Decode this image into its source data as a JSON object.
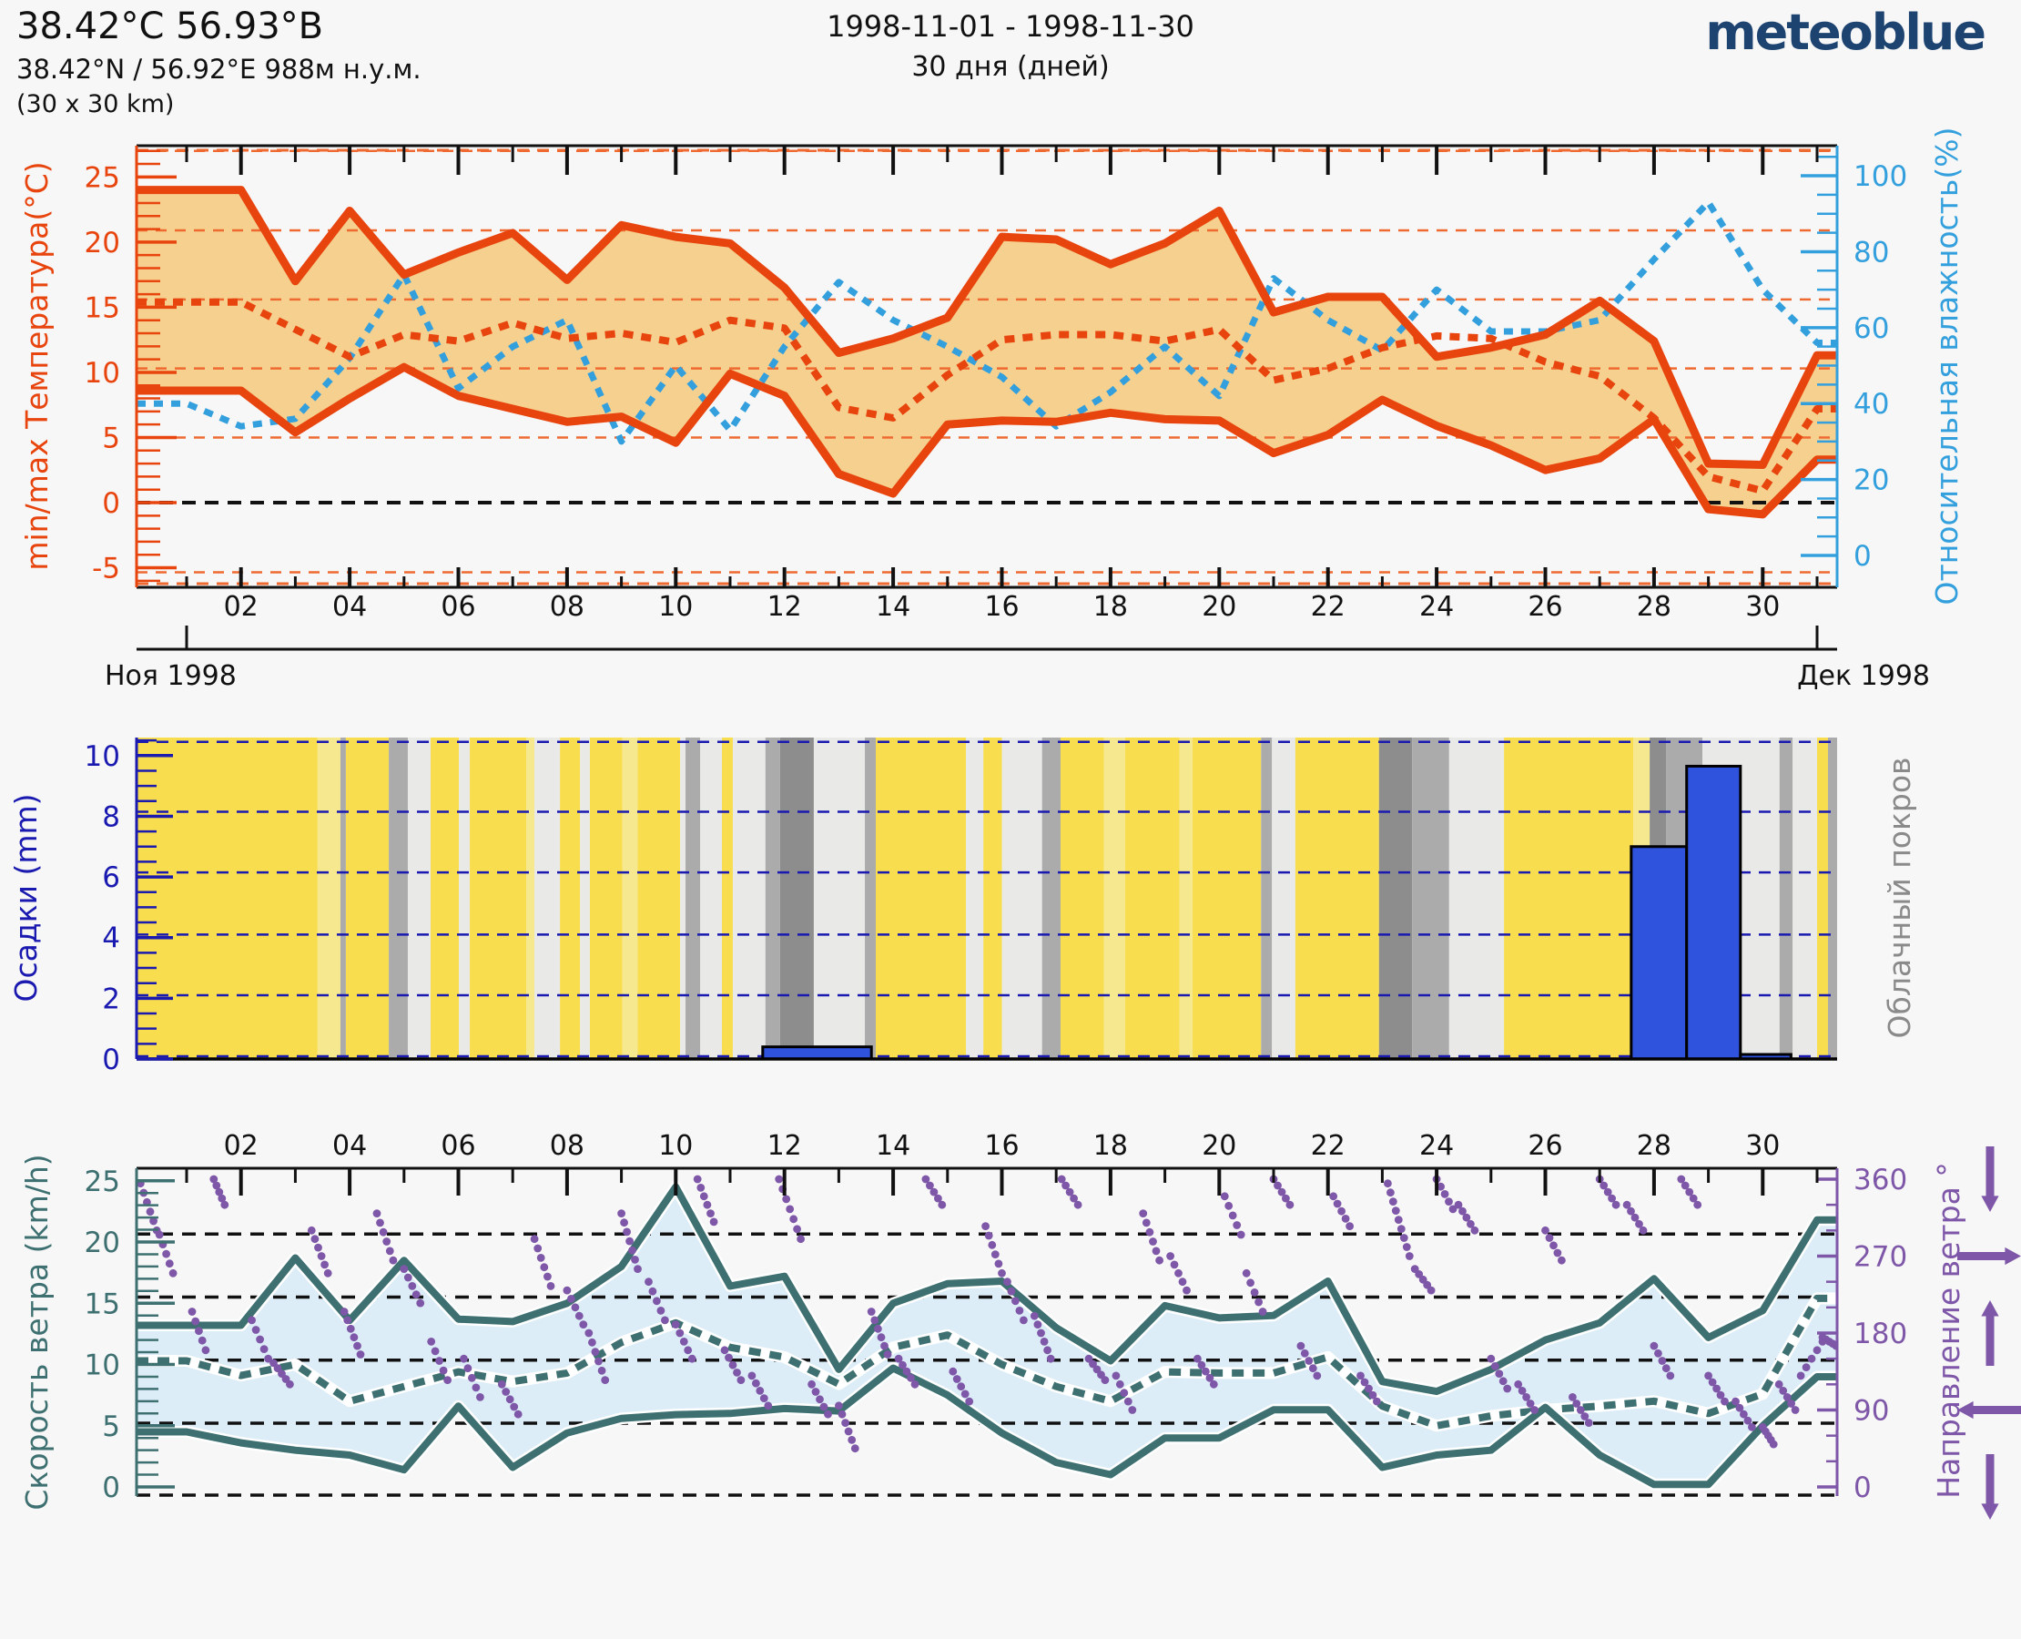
{
  "header": {
    "title": "38.42°С 56.93°В",
    "subtitle": "38.42°N / 56.92°E   988м н.у.м.",
    "area": "(30 x 30 km)",
    "period": "1998-11-01 - 1998-11-30",
    "duration": "30 дня (дней)",
    "logo": "meteoblue"
  },
  "month_axis": {
    "left_label": "Ноя 1998",
    "right_label": "Дек 1998"
  },
  "day_labels": [
    "02",
    "04",
    "06",
    "08",
    "10",
    "12",
    "14",
    "16",
    "18",
    "20",
    "22",
    "24",
    "26",
    "28",
    "30"
  ],
  "colors": {
    "orange": "#e8440e",
    "orange_grid": "#ef6a30",
    "blue": "#33a0dd",
    "navy": "#1a1ab0",
    "teal": "#3e7071",
    "purple": "#7e57a8",
    "gray_label": "#8a8a8a",
    "logo_blue": "#1d4370"
  },
  "chart_data": [
    {
      "type": "area",
      "name": "temperature-humidity",
      "ylabel_left": "min/max Температура(°C)",
      "ylabel_right": "Относительная влажность(%)",
      "yticks_left": [
        -5,
        0,
        5,
        10,
        15,
        20,
        25
      ],
      "yticks_right": [
        0,
        20,
        40,
        60,
        80,
        100
      ],
      "ylim_left": [
        -6.5,
        27.4
      ],
      "ylim_right": [
        0,
        100
      ],
      "band_fill": "#f6d08e",
      "gridlines_left": [
        20.9,
        15.6,
        10.3,
        5.0
      ],
      "zero_line": 0,
      "x_days": [
        1,
        2,
        3,
        4,
        5,
        6,
        7,
        8,
        9,
        10,
        11,
        12,
        13,
        14,
        15,
        16,
        17,
        18,
        19,
        20,
        21,
        22,
        23,
        24,
        25,
        26,
        27,
        28,
        29,
        30,
        31
      ],
      "series": [
        {
          "name": "temp_max",
          "unit": "°C",
          "style": "solid",
          "values": [
            24,
            24,
            17,
            22.4,
            17.5,
            19.2,
            20.7,
            17.1,
            21.3,
            20.4,
            19.9,
            16.5,
            11.5,
            12.6,
            14.2,
            20.4,
            20.2,
            18.3,
            19.9,
            22.4,
            14.6,
            15.8,
            15.8,
            11.2,
            11.9,
            12.9,
            15.5,
            12.4,
            3.0,
            2.9,
            11.3
          ]
        },
        {
          "name": "temp_mean",
          "unit": "°C",
          "style": "dashed",
          "values": [
            15.4,
            15.4,
            13.3,
            11.2,
            12.9,
            12.4,
            13.8,
            12.6,
            13.0,
            12.3,
            14.0,
            13.4,
            7.3,
            6.5,
            9.8,
            12.5,
            12.9,
            12.9,
            12.4,
            13.3,
            9.4,
            10.3,
            11.9,
            12.8,
            12.6,
            10.8,
            9.7,
            6.5,
            2.0,
            0.9,
            7.2
          ]
        },
        {
          "name": "temp_min",
          "unit": "°C",
          "style": "solid",
          "values": [
            8.6,
            8.6,
            5.4,
            8.0,
            10.4,
            8.2,
            7.2,
            6.2,
            6.6,
            4.6,
            9.9,
            8.2,
            2.2,
            0.7,
            6.0,
            6.3,
            6.2,
            6.9,
            6.4,
            6.3,
            3.8,
            5.2,
            7.9,
            5.9,
            4.4,
            2.5,
            3.4,
            6.4,
            -0.5,
            -0.9,
            3.3
          ]
        },
        {
          "name": "rel_humidity",
          "unit": "%",
          "style": "dashed",
          "axis": "right",
          "values": [
            40,
            34,
            36,
            52,
            74,
            44,
            55,
            62,
            30,
            50,
            33,
            55,
            72,
            62,
            55,
            47,
            34,
            43,
            55,
            42,
            73,
            62,
            54,
            70,
            59,
            59,
            62,
            78,
            93,
            70,
            56
          ]
        }
      ]
    },
    {
      "type": "bar",
      "name": "precipitation-cloudcover",
      "ylabel_left": "Осадки (mm)",
      "ylabel_right": "Облачный покров",
      "yticks_left": [
        0,
        2,
        4,
        6,
        8,
        10
      ],
      "ylim_left": [
        0,
        10.6
      ],
      "gridlines": [
        2.1,
        4.1,
        6.15,
        8.15,
        10.45,
        0.09
      ],
      "bar_color": "#2f53dd",
      "bars": [
        {
          "from_day": 11.6,
          "to_day": 13.6,
          "mm": 0.4
        },
        {
          "from_day": 27.58,
          "to_day": 28.6,
          "mm": 7.0
        },
        {
          "from_day": 28.6,
          "to_day": 29.59,
          "mm": 9.65
        },
        {
          "from_day": 29.59,
          "to_day": 30.52,
          "mm": 0.15
        }
      ],
      "shade_colors": {
        "yellow": "#f8dd4e",
        "pale": "#f5e88f",
        "light": "#e9e9e7",
        "gray": "#ababab",
        "dark": "#8d8d8d"
      },
      "cloud_stripes": [
        [
          0.08,
          3.41,
          "yellow"
        ],
        [
          3.41,
          3.83,
          "pale"
        ],
        [
          3.83,
          3.93,
          "gray"
        ],
        [
          3.93,
          4.72,
          "yellow"
        ],
        [
          4.72,
          5.07,
          "gray"
        ],
        [
          5.07,
          5.49,
          "light"
        ],
        [
          5.49,
          6.01,
          "yellow"
        ],
        [
          6.01,
          6.21,
          "light"
        ],
        [
          6.21,
          7.25,
          "yellow"
        ],
        [
          7.25,
          7.4,
          "pale"
        ],
        [
          7.4,
          7.87,
          "light"
        ],
        [
          7.87,
          8.24,
          "yellow"
        ],
        [
          8.24,
          8.42,
          "light"
        ],
        [
          8.42,
          9.02,
          "yellow"
        ],
        [
          9.02,
          9.3,
          "pale"
        ],
        [
          9.3,
          10.08,
          "yellow"
        ],
        [
          10.08,
          10.18,
          "light"
        ],
        [
          10.18,
          10.45,
          "gray"
        ],
        [
          10.45,
          10.85,
          "light"
        ],
        [
          10.85,
          11.05,
          "yellow"
        ],
        [
          11.05,
          11.65,
          "light"
        ],
        [
          11.65,
          11.92,
          "gray"
        ],
        [
          11.92,
          12.54,
          "dark"
        ],
        [
          12.54,
          13.48,
          "light"
        ],
        [
          13.48,
          13.68,
          "gray"
        ],
        [
          13.68,
          15.34,
          "yellow"
        ],
        [
          15.34,
          15.66,
          "light"
        ],
        [
          15.66,
          16.0,
          "yellow"
        ],
        [
          16.0,
          16.74,
          "light"
        ],
        [
          16.74,
          17.08,
          "gray"
        ],
        [
          17.08,
          17.88,
          "yellow"
        ],
        [
          17.88,
          18.27,
          "pale"
        ],
        [
          18.27,
          19.27,
          "yellow"
        ],
        [
          19.27,
          19.51,
          "pale"
        ],
        [
          19.51,
          20.77,
          "yellow"
        ],
        [
          20.77,
          20.97,
          "gray"
        ],
        [
          20.97,
          21.4,
          "light"
        ],
        [
          21.4,
          22.94,
          "yellow"
        ],
        [
          22.94,
          23.55,
          "dark"
        ],
        [
          23.55,
          24.23,
          "gray"
        ],
        [
          24.23,
          25.24,
          "light"
        ],
        [
          25.24,
          27.62,
          "yellow"
        ],
        [
          27.62,
          27.92,
          "pale"
        ],
        [
          27.92,
          28.22,
          "dark"
        ],
        [
          28.22,
          28.89,
          "gray"
        ],
        [
          28.89,
          30.31,
          "light"
        ],
        [
          30.31,
          30.55,
          "gray"
        ],
        [
          30.55,
          31.0,
          "light"
        ],
        [
          31.0,
          31.2,
          "yellow"
        ],
        [
          31.2,
          31.4,
          "gray"
        ]
      ]
    },
    {
      "type": "line-scatter",
      "name": "wind",
      "ylabel_left": "Скорость ветра (km/h)",
      "ylabel_right": "Направление ветра °",
      "yticks_left": [
        0,
        5,
        10,
        15,
        20,
        25
      ],
      "yticks_right": [
        0,
        90,
        180,
        270,
        360
      ],
      "ylim_left": [
        0,
        26
      ],
      "ylim_right": [
        0,
        360
      ],
      "band_fill": "#dcedf7",
      "gridlines": [
        20.65,
        15.5,
        10.35,
        5.2
      ],
      "margin_arrows": [
        "down",
        "right",
        "up",
        "left",
        "down"
      ],
      "series": [
        {
          "name": "wind_max",
          "unit": "km/h",
          "style": "solid",
          "values": [
            13.2,
            13.2,
            18.7,
            13.6,
            18.5,
            13.7,
            13.5,
            15.0,
            18.0,
            24.5,
            16.4,
            17.2,
            9.6,
            15.0,
            16.6,
            16.8,
            13.0,
            10.3,
            14.8,
            13.8,
            14.0,
            16.8,
            8.6,
            7.8,
            9.6,
            12.0,
            13.4,
            17.0,
            12.2,
            14.4,
            21.8
          ]
        },
        {
          "name": "wind_mean",
          "unit": "km/h",
          "style": "dashed",
          "values": [
            10.3,
            9.1,
            10.0,
            7.0,
            8.2,
            9.4,
            8.6,
            9.3,
            11.8,
            13.4,
            11.4,
            10.6,
            8.4,
            11.4,
            12.4,
            10.0,
            8.2,
            7.0,
            9.4,
            9.3,
            9.3,
            10.6,
            6.6,
            5.0,
            5.8,
            6.3,
            6.6,
            7.0,
            6.0,
            7.6,
            15.4
          ]
        },
        {
          "name": "wind_min",
          "unit": "km/h",
          "style": "solid",
          "values": [
            4.5,
            3.6,
            3.0,
            2.6,
            1.4,
            6.6,
            1.6,
            4.4,
            5.6,
            5.9,
            6.0,
            6.4,
            6.2,
            9.7,
            7.5,
            4.4,
            2.0,
            1.0,
            4.0,
            4.0,
            6.3,
            6.3,
            1.6,
            2.6,
            3.0,
            6.5,
            2.6,
            0.2,
            0.2,
            5.0,
            9.0
          ]
        }
      ],
      "direction_segments": [
        [
          0.15,
          355,
          0.45,
          300
        ],
        [
          0.5,
          295,
          0.75,
          250
        ],
        [
          1.1,
          205,
          1.35,
          160
        ],
        [
          1.5,
          360,
          1.7,
          330
        ],
        [
          2.2,
          195,
          2.5,
          150
        ],
        [
          2.6,
          145,
          2.9,
          120
        ],
        [
          3.3,
          300,
          3.6,
          250
        ],
        [
          3.9,
          205,
          4.2,
          155
        ],
        [
          4.5,
          320,
          4.8,
          265
        ],
        [
          5.0,
          255,
          5.3,
          215
        ],
        [
          5.5,
          170,
          5.8,
          125
        ],
        [
          6.1,
          150,
          6.4,
          105
        ],
        [
          6.8,
          120,
          7.1,
          85
        ],
        [
          7.4,
          290,
          7.7,
          235
        ],
        [
          8.0,
          230,
          8.3,
          190
        ],
        [
          8.4,
          180,
          8.7,
          125
        ],
        [
          9.0,
          320,
          9.3,
          255
        ],
        [
          9.5,
          240,
          9.8,
          195
        ],
        [
          10.0,
          190,
          10.3,
          150
        ],
        [
          10.4,
          360,
          10.7,
          310
        ],
        [
          10.9,
          160,
          11.2,
          125
        ],
        [
          11.4,
          130,
          11.7,
          95
        ],
        [
          11.9,
          360,
          12.3,
          290
        ],
        [
          12.5,
          120,
          12.8,
          85
        ],
        [
          13.0,
          95,
          13.3,
          45
        ],
        [
          13.6,
          205,
          13.9,
          155
        ],
        [
          14.1,
          150,
          14.4,
          120
        ],
        [
          14.6,
          360,
          14.9,
          330
        ],
        [
          15.1,
          135,
          15.4,
          100
        ],
        [
          15.7,
          305,
          16.0,
          250
        ],
        [
          16.1,
          240,
          16.4,
          195
        ],
        [
          16.6,
          200,
          16.9,
          150
        ],
        [
          17.1,
          360,
          17.4,
          330
        ],
        [
          17.6,
          150,
          17.9,
          125
        ],
        [
          18.1,
          130,
          18.4,
          90
        ],
        [
          18.6,
          320,
          18.9,
          265
        ],
        [
          19.1,
          270,
          19.4,
          230
        ],
        [
          19.6,
          150,
          19.9,
          120
        ],
        [
          20.1,
          340,
          20.4,
          295
        ],
        [
          20.5,
          250,
          20.8,
          205
        ],
        [
          21.0,
          360,
          21.3,
          330
        ],
        [
          21.5,
          165,
          21.8,
          130
        ],
        [
          22.1,
          340,
          22.4,
          305
        ],
        [
          22.6,
          130,
          22.9,
          100
        ],
        [
          23.1,
          355,
          23.5,
          270
        ],
        [
          23.6,
          255,
          23.9,
          230
        ],
        [
          24.0,
          360,
          24.3,
          325
        ],
        [
          24.4,
          330,
          24.7,
          300
        ],
        [
          25.0,
          150,
          25.3,
          115
        ],
        [
          25.5,
          120,
          25.8,
          90
        ],
        [
          26.0,
          300,
          26.3,
          265
        ],
        [
          26.5,
          105,
          26.8,
          75
        ],
        [
          27.0,
          360,
          27.3,
          330
        ],
        [
          27.5,
          330,
          27.8,
          300
        ],
        [
          28.0,
          165,
          28.3,
          130
        ],
        [
          28.5,
          360,
          28.8,
          330
        ],
        [
          29.0,
          130,
          29.3,
          100
        ],
        [
          29.5,
          100,
          29.8,
          70
        ],
        [
          30.0,
          70,
          30.2,
          50
        ],
        [
          30.3,
          120,
          30.6,
          90
        ],
        [
          30.7,
          130,
          31.1,
          170
        ],
        [
          31.1,
          175,
          31.35,
          165
        ]
      ]
    }
  ]
}
